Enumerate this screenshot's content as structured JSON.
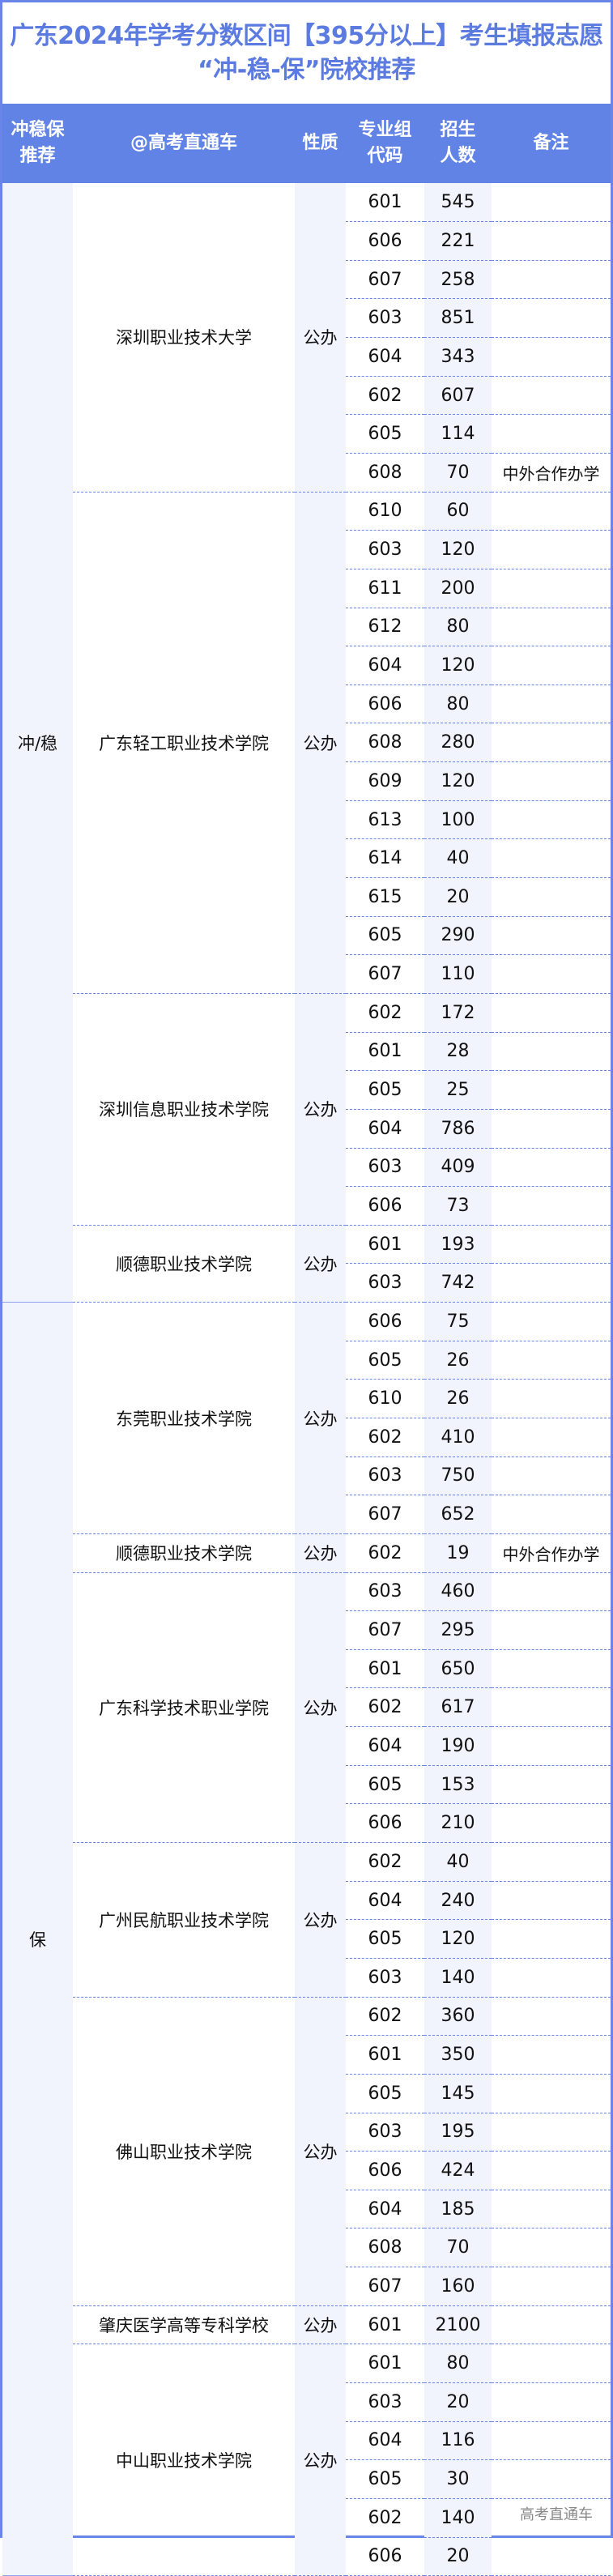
{
  "title": {
    "line1": "广东2024年学考分数区间【395分以上】考生填报志愿",
    "line2": "“冲-稳-保”院校推荐"
  },
  "headers": [
    "冲稳保推荐",
    "@高考直通车",
    "性质",
    "专业组代码",
    "招生人数",
    "备注"
  ],
  "groups": [
    {
      "tier": "冲/稳",
      "schools": [
        {
          "name": "深圳职业技术大学",
          "type": "公办",
          "rows": [
            [
              "601",
              "545",
              ""
            ],
            [
              "606",
              "221",
              ""
            ],
            [
              "607",
              "258",
              ""
            ],
            [
              "603",
              "851",
              ""
            ],
            [
              "604",
              "343",
              ""
            ],
            [
              "602",
              "607",
              ""
            ],
            [
              "605",
              "114",
              ""
            ],
            [
              "608",
              "70",
              "中外合作办学"
            ]
          ]
        },
        {
          "name": "广东轻工职业技术学院",
          "type": "公办",
          "rows": [
            [
              "610",
              "60",
              ""
            ],
            [
              "603",
              "120",
              ""
            ],
            [
              "611",
              "200",
              ""
            ],
            [
              "612",
              "80",
              ""
            ],
            [
              "604",
              "120",
              ""
            ],
            [
              "606",
              "80",
              ""
            ],
            [
              "608",
              "280",
              ""
            ],
            [
              "609",
              "120",
              ""
            ],
            [
              "613",
              "100",
              ""
            ],
            [
              "614",
              "40",
              ""
            ],
            [
              "615",
              "20",
              ""
            ],
            [
              "605",
              "290",
              ""
            ],
            [
              "607",
              "110",
              ""
            ]
          ]
        },
        {
          "name": "深圳信息职业技术学院",
          "type": "公办",
          "rows": [
            [
              "602",
              "172",
              ""
            ],
            [
              "601",
              "28",
              ""
            ],
            [
              "605",
              "25",
              ""
            ],
            [
              "604",
              "786",
              ""
            ],
            [
              "603",
              "409",
              ""
            ],
            [
              "606",
              "73",
              ""
            ]
          ]
        },
        {
          "name": "顺德职业技术学院",
          "type": "公办",
          "rows": [
            [
              "601",
              "193",
              ""
            ],
            [
              "603",
              "742",
              ""
            ]
          ]
        }
      ]
    },
    {
      "tier": "保",
      "schools": [
        {
          "name": "东莞职业技术学院",
          "type": "公办",
          "rows": [
            [
              "606",
              "75",
              ""
            ],
            [
              "605",
              "26",
              ""
            ],
            [
              "610",
              "26",
              ""
            ],
            [
              "602",
              "410",
              ""
            ],
            [
              "603",
              "750",
              ""
            ],
            [
              "607",
              "652",
              ""
            ]
          ]
        },
        {
          "name": "顺德职业技术学院",
          "type": "公办",
          "rows": [
            [
              "602",
              "19",
              "中外合作办学"
            ]
          ]
        },
        {
          "name": "广东科学技术职业学院",
          "type": "公办",
          "rows": [
            [
              "603",
              "460",
              ""
            ],
            [
              "607",
              "295",
              ""
            ],
            [
              "601",
              "650",
              ""
            ],
            [
              "602",
              "617",
              ""
            ],
            [
              "604",
              "190",
              ""
            ],
            [
              "605",
              "153",
              ""
            ],
            [
              "606",
              "210",
              ""
            ]
          ]
        },
        {
          "name": "广州民航职业技术学院",
          "type": "公办",
          "rows": [
            [
              "602",
              "40",
              ""
            ],
            [
              "604",
              "240",
              ""
            ],
            [
              "605",
              "120",
              ""
            ],
            [
              "603",
              "140",
              ""
            ]
          ]
        },
        {
          "name": "佛山职业技术学院",
          "type": "公办",
          "rows": [
            [
              "602",
              "360",
              ""
            ],
            [
              "601",
              "350",
              ""
            ],
            [
              "605",
              "145",
              ""
            ],
            [
              "603",
              "195",
              ""
            ],
            [
              "606",
              "424",
              ""
            ],
            [
              "604",
              "185",
              ""
            ],
            [
              "608",
              "70",
              ""
            ],
            [
              "607",
              "160",
              ""
            ]
          ]
        },
        {
          "name": "肇庆医学高等专科学校",
          "type": "公办",
          "rows": [
            [
              "601",
              "2100",
              ""
            ]
          ]
        },
        {
          "name": "中山职业技术学院",
          "type": "公办",
          "rows": [
            [
              "601",
              "80",
              ""
            ],
            [
              "603",
              "20",
              ""
            ],
            [
              "604",
              "116",
              ""
            ],
            [
              "605",
              "30",
              ""
            ],
            [
              "602",
              "140",
              ""
            ],
            [
              "606",
              "20",
              ""
            ]
          ]
        }
      ]
    }
  ],
  "footer": "高考直通车",
  "colors": {
    "accent": "#6283e6",
    "stripe": "#f1f4fd"
  }
}
